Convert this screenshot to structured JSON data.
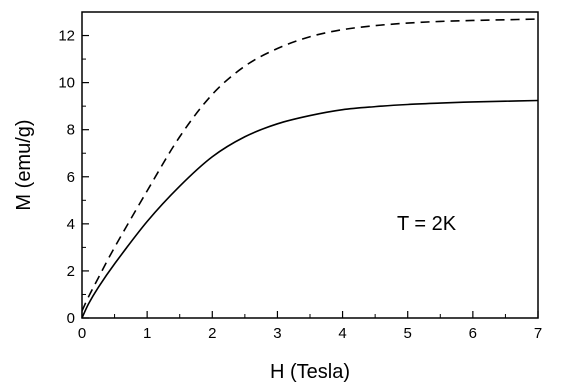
{
  "chart_data": {
    "type": "line",
    "xlabel": "H (Tesla)",
    "ylabel": "M (emu/g)",
    "xlim": [
      0,
      7
    ],
    "ylim": [
      0,
      13
    ],
    "xticks": [
      "0",
      "1",
      "2",
      "3",
      "4",
      "5",
      "6",
      "7"
    ],
    "yticks": [
      "0",
      "2",
      "4",
      "6",
      "8",
      "10",
      "12"
    ],
    "grid": false,
    "legend": "none",
    "annotation": "T = 2K",
    "series": [
      {
        "style": "solid",
        "color": "#000000",
        "x": [
          0,
          0.1,
          0.25,
          0.5,
          1.0,
          1.5,
          2.0,
          2.5,
          3.0,
          3.5,
          4.0,
          4.5,
          5.0,
          5.5,
          6.0,
          6.5,
          7.0
        ],
        "y": [
          0,
          0.6,
          1.3,
          2.3,
          4.1,
          5.6,
          6.85,
          7.7,
          8.25,
          8.6,
          8.85,
          8.98,
          9.07,
          9.13,
          9.18,
          9.21,
          9.24
        ]
      },
      {
        "style": "dashed",
        "color": "#000000",
        "x": [
          0,
          0.1,
          0.25,
          0.5,
          1.0,
          1.5,
          2.0,
          2.5,
          3.0,
          3.5,
          4.0,
          4.5,
          5.0,
          5.5,
          6.0,
          6.5,
          7.0
        ],
        "y": [
          0.3,
          0.9,
          1.7,
          3.0,
          5.4,
          7.7,
          9.5,
          10.7,
          11.45,
          11.95,
          12.25,
          12.42,
          12.53,
          12.6,
          12.64,
          12.67,
          12.7
        ]
      }
    ]
  }
}
